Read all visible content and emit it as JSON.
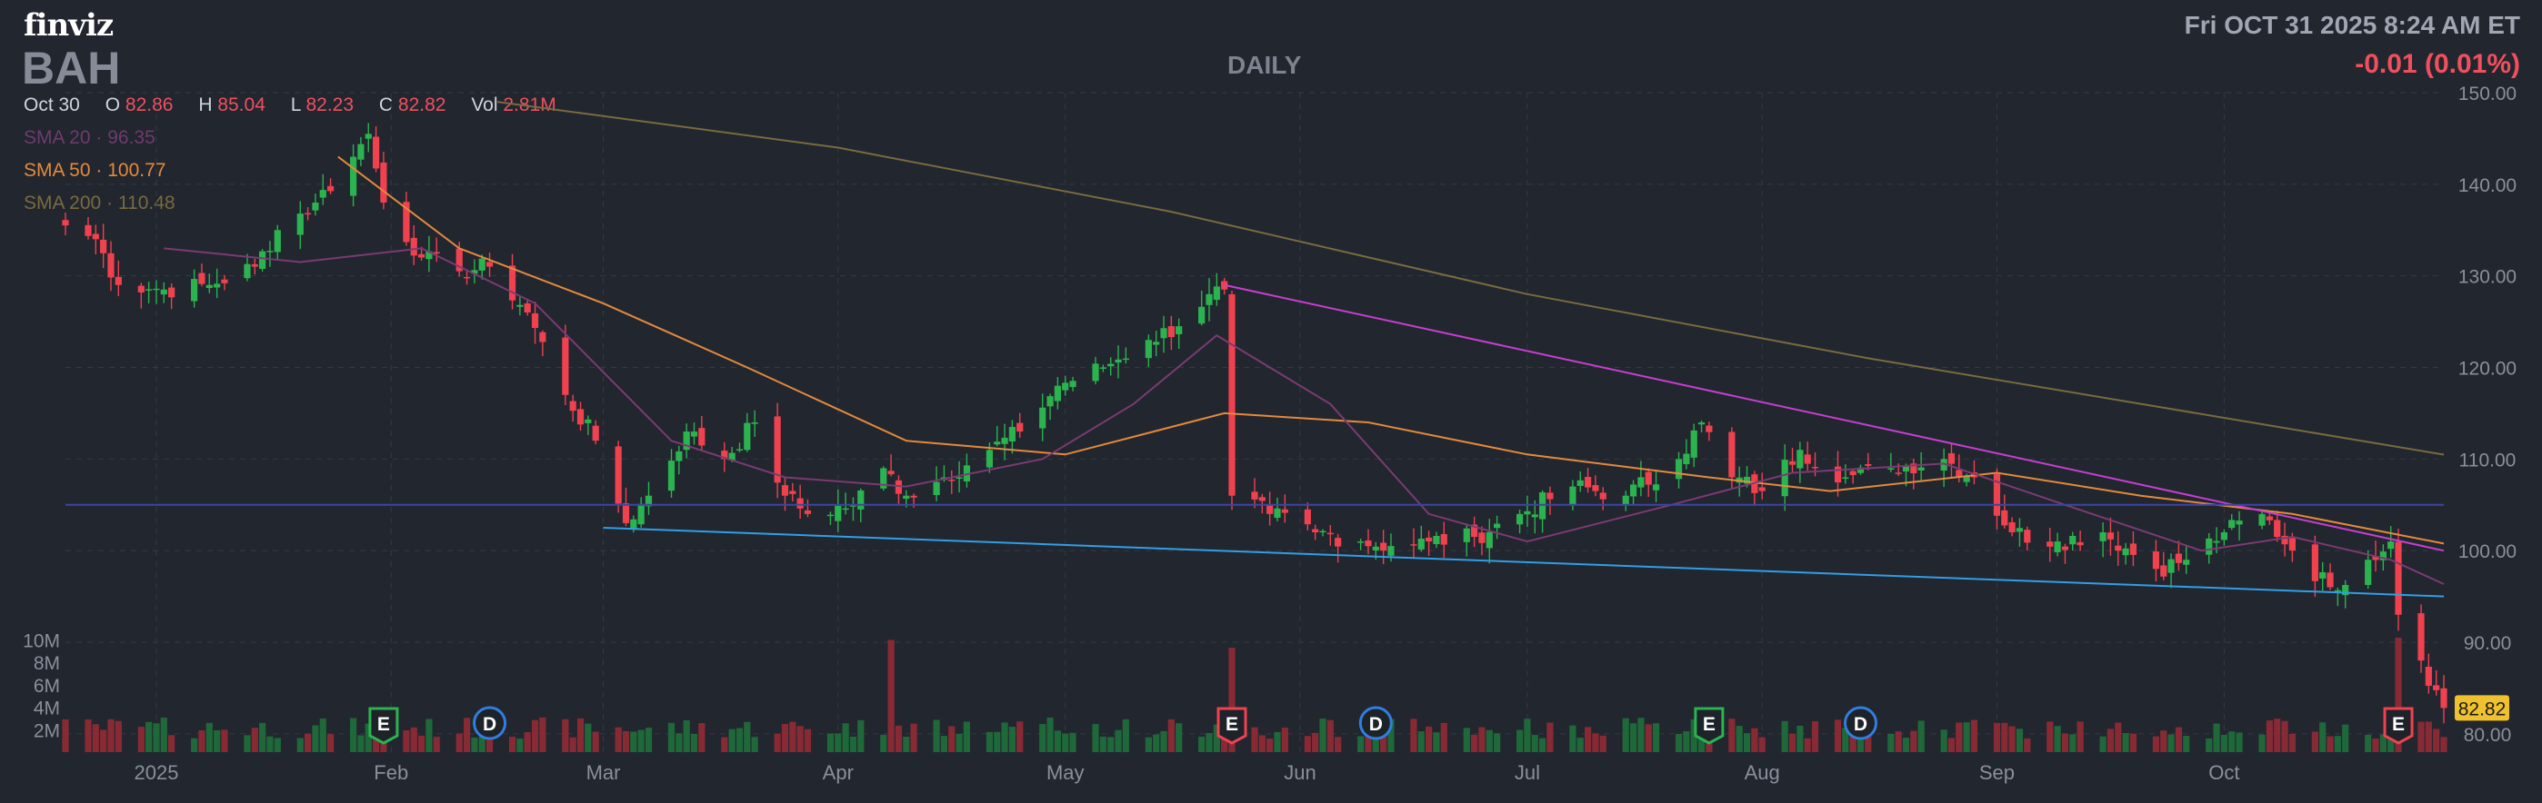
{
  "header": {
    "logo": "finviz",
    "ticker": "BAH",
    "timeframe": "DAILY",
    "datetime": "Fri OCT 31 2025 8:24 AM ET",
    "change": "-0.01 (0.01%)",
    "ohlc": {
      "date": "Oct 30",
      "o_label": "O",
      "o": "82.86",
      "h_label": "H",
      "h": "85.04",
      "l_label": "L",
      "l": "82.23",
      "c_label": "C",
      "c": "82.82",
      "vol_label": "Vol",
      "vol": "2.81M"
    },
    "sma20": {
      "label": "SMA 20",
      "value": "96.35"
    },
    "sma50": {
      "label": "SMA 50",
      "value": "100.77"
    },
    "sma200": {
      "label": "SMA 200",
      "value": "110.48"
    }
  },
  "colors": {
    "up": "#2bb34f",
    "down": "#f0414f",
    "sma20": "#7b3a73",
    "sma50": "#e48a3c",
    "sma200": "#7a6a3f",
    "resistance_line": "#c63fd1",
    "support_line": "#2f9fe8",
    "horizontal_line": "#3a45a8",
    "last_price": "#f0c12e",
    "grid": "#343943"
  },
  "chart_data": {
    "type": "candlestick",
    "price_axis": {
      "ylim": [
        78,
        150
      ],
      "ticks": [
        80,
        90,
        100,
        110,
        120,
        130,
        140,
        150
      ],
      "tick_labels": [
        "80.00",
        "90.00",
        "100.00",
        "110.00",
        "120.00",
        "130.00",
        "140.00",
        "150.00"
      ]
    },
    "volume_axis": {
      "ylim": [
        0,
        11500000
      ],
      "ticks": [
        2000000,
        4000000,
        6000000,
        8000000,
        10000000
      ],
      "tick_labels": [
        "2M",
        "4M",
        "6M",
        "8M",
        "10M"
      ]
    },
    "x_axis": {
      "start": "2024-12-20",
      "end": "2025-10-30",
      "month_ticks": [
        {
          "date": "2025-01-01",
          "label": "2025"
        },
        {
          "date": "2025-02-01",
          "label": "Feb"
        },
        {
          "date": "2025-03-01",
          "label": "Mar"
        },
        {
          "date": "2025-04-01",
          "label": "Apr"
        },
        {
          "date": "2025-05-01",
          "label": "May"
        },
        {
          "date": "2025-06-01",
          "label": "Jun"
        },
        {
          "date": "2025-07-01",
          "label": "Jul"
        },
        {
          "date": "2025-08-01",
          "label": "Aug"
        },
        {
          "date": "2025-09-01",
          "label": "Sep"
        },
        {
          "date": "2025-10-01",
          "label": "Oct"
        }
      ]
    },
    "last_price": "82.82",
    "closes": [
      {
        "date": "2024-12-20",
        "close": 135.5
      },
      {
        "date": "2024-12-24",
        "close": 134.0
      },
      {
        "date": "2024-12-27",
        "close": 129.0
      },
      {
        "date": "2025-01-02",
        "close": 128.5
      },
      {
        "date": "2025-01-08",
        "close": 129.0
      },
      {
        "date": "2025-01-14",
        "close": 131.0
      },
      {
        "date": "2025-01-17",
        "close": 135.0
      },
      {
        "date": "2025-01-22",
        "close": 138.0
      },
      {
        "date": "2025-01-27",
        "close": 143.0
      },
      {
        "date": "2025-01-29",
        "close": 145.5
      },
      {
        "date": "2025-01-31",
        "close": 138.0
      },
      {
        "date": "2025-02-05",
        "close": 132.0
      },
      {
        "date": "2025-02-10",
        "close": 130.5
      },
      {
        "date": "2025-02-14",
        "close": 131.0
      },
      {
        "date": "2025-02-19",
        "close": 126.0
      },
      {
        "date": "2025-02-24",
        "close": 117.0
      },
      {
        "date": "2025-02-28",
        "close": 112.0
      },
      {
        "date": "2025-03-04",
        "close": 103.0
      },
      {
        "date": "2025-03-07",
        "close": 106.0
      },
      {
        "date": "2025-03-12",
        "close": 113.0
      },
      {
        "date": "2025-03-17",
        "close": 110.0
      },
      {
        "date": "2025-03-21",
        "close": 114.0
      },
      {
        "date": "2025-03-25",
        "close": 106.0
      },
      {
        "date": "2025-03-28",
        "close": 104.0
      },
      {
        "date": "2025-04-03",
        "close": 105.0
      },
      {
        "date": "2025-04-07",
        "close": 109.0
      },
      {
        "date": "2025-04-10",
        "close": 106.0
      },
      {
        "date": "2025-04-15",
        "close": 108.0
      },
      {
        "date": "2025-04-21",
        "close": 111.0
      },
      {
        "date": "2025-04-25",
        "close": 113.0
      },
      {
        "date": "2025-04-30",
        "close": 118.0
      },
      {
        "date": "2025-05-06",
        "close": 120.0
      },
      {
        "date": "2025-05-12",
        "close": 123.0
      },
      {
        "date": "2025-05-16",
        "close": 124.5
      },
      {
        "date": "2025-05-20",
        "close": 128.0
      },
      {
        "date": "2025-05-22",
        "close": 128.5
      },
      {
        "date": "2025-05-23",
        "close": 106.0
      },
      {
        "date": "2025-05-28",
        "close": 104.0
      },
      {
        "date": "2025-06-03",
        "close": 102.0
      },
      {
        "date": "2025-06-09",
        "close": 101.0
      },
      {
        "date": "2025-06-13",
        "close": 100.5
      },
      {
        "date": "2025-06-18",
        "close": 101.0
      },
      {
        "date": "2025-06-24",
        "close": 101.5
      },
      {
        "date": "2025-06-30",
        "close": 104.0
      },
      {
        "date": "2025-07-07",
        "close": 107.0
      },
      {
        "date": "2025-07-14",
        "close": 106.0
      },
      {
        "date": "2025-07-21",
        "close": 110.0
      },
      {
        "date": "2025-07-24",
        "close": 114.0
      },
      {
        "date": "2025-07-28",
        "close": 108.0
      },
      {
        "date": "2025-08-01",
        "close": 106.5
      },
      {
        "date": "2025-08-06",
        "close": 111.0
      },
      {
        "date": "2025-08-12",
        "close": 108.0
      },
      {
        "date": "2025-08-18",
        "close": 109.0
      },
      {
        "date": "2025-08-25",
        "close": 110.0
      },
      {
        "date": "2025-08-29",
        "close": 108.0
      },
      {
        "date": "2025-09-03",
        "close": 102.0
      },
      {
        "date": "2025-09-09",
        "close": 101.0
      },
      {
        "date": "2025-09-15",
        "close": 102.0
      },
      {
        "date": "2025-09-22",
        "close": 98.0
      },
      {
        "date": "2025-09-26",
        "close": 99.0
      },
      {
        "date": "2025-10-01",
        "close": 102.0
      },
      {
        "date": "2025-10-06",
        "close": 104.0
      },
      {
        "date": "2025-10-10",
        "close": 100.0
      },
      {
        "date": "2025-10-15",
        "close": 96.0
      },
      {
        "date": "2025-10-20",
        "close": 99.0
      },
      {
        "date": "2025-10-23",
        "close": 101.0
      },
      {
        "date": "2025-10-24",
        "close": 93.0
      },
      {
        "date": "2025-10-27",
        "close": 88.0
      },
      {
        "date": "2025-10-30",
        "close": 82.82
      }
    ],
    "sma20_path": [
      {
        "date": "2025-01-02",
        "value": 133.0
      },
      {
        "date": "2025-01-20",
        "value": 131.5
      },
      {
        "date": "2025-02-05",
        "value": 133.0
      },
      {
        "date": "2025-02-20",
        "value": 127.0
      },
      {
        "date": "2025-03-10",
        "value": 112.0
      },
      {
        "date": "2025-03-25",
        "value": 108.0
      },
      {
        "date": "2025-04-10",
        "value": 107.0
      },
      {
        "date": "2025-04-28",
        "value": 110.0
      },
      {
        "date": "2025-05-10",
        "value": 116.0
      },
      {
        "date": "2025-05-21",
        "value": 123.5
      },
      {
        "date": "2025-06-05",
        "value": 116.0
      },
      {
        "date": "2025-06-18",
        "value": 104.0
      },
      {
        "date": "2025-07-01",
        "value": 101.0
      },
      {
        "date": "2025-07-20",
        "value": 105.0
      },
      {
        "date": "2025-08-05",
        "value": 108.5
      },
      {
        "date": "2025-08-25",
        "value": 109.5
      },
      {
        "date": "2025-09-10",
        "value": 105.0
      },
      {
        "date": "2025-09-28",
        "value": 100.0
      },
      {
        "date": "2025-10-10",
        "value": 101.5
      },
      {
        "date": "2025-10-23",
        "value": 99.0
      },
      {
        "date": "2025-10-30",
        "value": 96.35
      }
    ],
    "sma50_path": [
      {
        "date": "2025-01-25",
        "value": 143.0
      },
      {
        "date": "2025-02-10",
        "value": 133.0
      },
      {
        "date": "2025-03-01",
        "value": 127.0
      },
      {
        "date": "2025-03-20",
        "value": 120.0
      },
      {
        "date": "2025-04-10",
        "value": 112.0
      },
      {
        "date": "2025-05-01",
        "value": 110.5
      },
      {
        "date": "2025-05-22",
        "value": 115.0
      },
      {
        "date": "2025-06-10",
        "value": 114.0
      },
      {
        "date": "2025-07-01",
        "value": 110.5
      },
      {
        "date": "2025-07-25",
        "value": 108.0
      },
      {
        "date": "2025-08-10",
        "value": 106.5
      },
      {
        "date": "2025-09-01",
        "value": 108.5
      },
      {
        "date": "2025-09-20",
        "value": 106.0
      },
      {
        "date": "2025-10-10",
        "value": 104.0
      },
      {
        "date": "2025-10-30",
        "value": 100.77
      }
    ],
    "sma200_path": [
      {
        "date": "2025-02-15",
        "value": 149.0
      },
      {
        "date": "2025-04-01",
        "value": 144.0
      },
      {
        "date": "2025-05-15",
        "value": 137.0
      },
      {
        "date": "2025-07-01",
        "value": 128.0
      },
      {
        "date": "2025-08-15",
        "value": 121.0
      },
      {
        "date": "2025-10-01",
        "value": 114.5
      },
      {
        "date": "2025-10-30",
        "value": 110.48
      }
    ],
    "trendlines": [
      {
        "kind": "resistance",
        "from": {
          "date": "2025-05-22",
          "value": 129.0
        },
        "to": {
          "date": "2025-10-30",
          "value": 100.0
        }
      },
      {
        "kind": "support",
        "from": {
          "date": "2025-03-01",
          "value": 102.5
        },
        "to": {
          "date": "2025-10-30",
          "value": 95.0
        }
      },
      {
        "kind": "horizontal",
        "from": {
          "date": "2024-12-20",
          "value": 105.0
        },
        "to": {
          "date": "2025-10-30",
          "value": 105.0
        }
      }
    ],
    "volume_spikes": [
      {
        "date": "2025-04-08",
        "volume": 10000000
      },
      {
        "date": "2025-05-23",
        "volume": 9300000
      },
      {
        "date": "2025-10-24",
        "volume": 10200000
      }
    ],
    "events": [
      {
        "date": "2025-01-31",
        "label": "E"
      },
      {
        "date": "2025-02-14",
        "label": "D"
      },
      {
        "date": "2025-05-23",
        "label": "E"
      },
      {
        "date": "2025-06-11",
        "label": "D"
      },
      {
        "date": "2025-07-25",
        "label": "E"
      },
      {
        "date": "2025-08-14",
        "label": "D"
      },
      {
        "date": "2025-10-24",
        "label": "E"
      }
    ]
  }
}
